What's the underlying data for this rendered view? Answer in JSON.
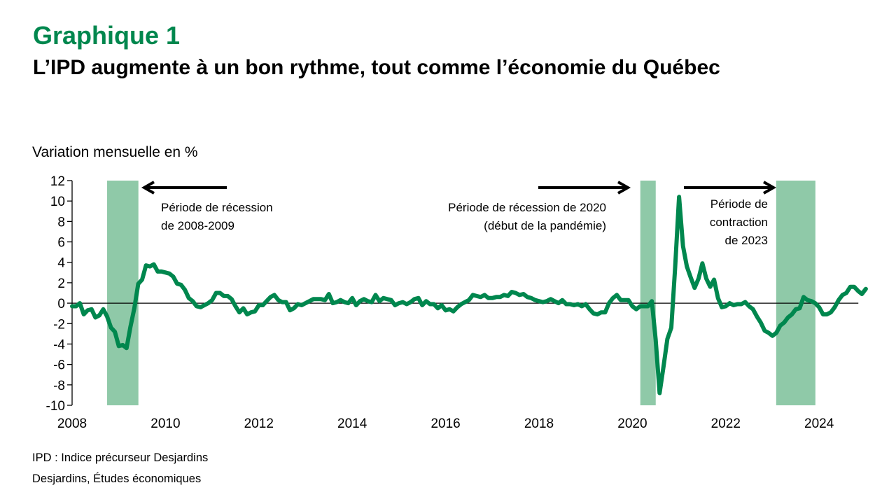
{
  "header": {
    "chart_number": "Graphique 1",
    "subtitle": "L’IPD augmente à un bon rythme, tout comme l’économie du Québec"
  },
  "footer": {
    "note": "IPD : Indice précurseur Desjardins",
    "source": "Desjardins, Études économiques"
  },
  "colors": {
    "line": "#00874E",
    "shading": "#8FC9A8",
    "title": "#00874E",
    "axis": "#000000"
  },
  "chart_data": {
    "type": "line",
    "title": "Graphique 1",
    "subtitle": "L’IPD augmente à un bon rythme, tout comme l’économie du Québec",
    "ylabel": "Variation mensuelle en %",
    "xlabel": "",
    "ylim": [
      -10,
      12
    ],
    "yticks": [
      -10,
      -8,
      -6,
      -4,
      -2,
      0,
      2,
      4,
      6,
      8,
      10,
      12
    ],
    "xlim": [
      2008,
      2024.75
    ],
    "xticks": [
      2008,
      2010,
      2012,
      2014,
      2016,
      2018,
      2020,
      2022,
      2024
    ],
    "grid": false,
    "legend": "none",
    "shaded_periods": [
      {
        "label": "Période de récession de 2008-2009",
        "start": 2008.75,
        "end": 2009.42
      },
      {
        "label": "Période de récession de 2020",
        "start": 2020.17,
        "end": 2020.5
      },
      {
        "label": "Période de contraction de 2023",
        "start": 2023.08,
        "end": 2023.92
      }
    ],
    "annotations": [
      {
        "lines": [
          "Période de récession",
          "de 2008-2009"
        ],
        "arrow": "left",
        "align": "left"
      },
      {
        "lines": [
          "Période de récession de 2020",
          "(début de la pandémie)"
        ],
        "arrow": "right",
        "align": "right"
      },
      {
        "lines": [
          "Période de",
          "contraction",
          "de 2023"
        ],
        "arrow": "right",
        "align": "right"
      }
    ],
    "series": [
      {
        "name": "IPD",
        "start": 2008.0,
        "step": 0.0833333,
        "values": [
          -0.3,
          -0.3,
          0.0,
          -1.1,
          -0.7,
          -0.6,
          -1.4,
          -1.2,
          -0.6,
          -1.3,
          -2.4,
          -2.8,
          -4.2,
          -4.1,
          -4.4,
          -2.3,
          -0.5,
          1.9,
          2.3,
          3.7,
          3.6,
          3.8,
          3.1,
          3.1,
          3.0,
          2.9,
          2.6,
          1.9,
          1.8,
          1.3,
          0.5,
          0.2,
          -0.3,
          -0.4,
          -0.2,
          0.0,
          0.3,
          1.0,
          1.0,
          0.7,
          0.7,
          0.4,
          -0.3,
          -0.9,
          -0.5,
          -1.1,
          -0.9,
          -0.8,
          -0.2,
          -0.2,
          0.2,
          0.6,
          0.8,
          0.3,
          0.1,
          0.1,
          -0.7,
          -0.5,
          -0.1,
          -0.2,
          0.0,
          0.2,
          0.4,
          0.4,
          0.4,
          0.3,
          0.9,
          0.0,
          0.1,
          0.3,
          0.1,
          0.0,
          0.5,
          -0.2,
          0.2,
          0.4,
          0.2,
          0.1,
          0.8,
          0.2,
          0.5,
          0.4,
          0.3,
          -0.2,
          0.0,
          0.1,
          -0.1,
          0.1,
          0.4,
          0.5,
          -0.2,
          0.2,
          -0.1,
          -0.1,
          -0.5,
          -0.2,
          -0.7,
          -0.6,
          -0.8,
          -0.4,
          -0.1,
          0.1,
          0.3,
          0.8,
          0.7,
          0.6,
          0.8,
          0.5,
          0.5,
          0.6,
          0.6,
          0.8,
          0.7,
          1.1,
          1.0,
          0.8,
          0.9,
          0.6,
          0.5,
          0.3,
          0.2,
          0.1,
          0.2,
          0.4,
          0.2,
          0.0,
          0.3,
          -0.1,
          -0.1,
          -0.2,
          -0.1,
          -0.3,
          -0.1,
          -0.6,
          -1.0,
          -1.1,
          -0.9,
          -0.9,
          0.0,
          0.5,
          0.8,
          0.3,
          0.3,
          0.3,
          -0.3,
          -0.6,
          -0.3,
          -0.3,
          -0.3,
          0.2,
          -3.6,
          -8.8,
          -6.2,
          -3.5,
          -2.4,
          3.5,
          10.4,
          5.6,
          3.6,
          2.5,
          1.5,
          2.4,
          3.9,
          2.4,
          1.6,
          2.3,
          0.5,
          -0.4,
          -0.3,
          0.0,
          -0.2,
          -0.1,
          -0.1,
          0.1,
          -0.3,
          -0.6,
          -1.3,
          -1.9,
          -2.7,
          -2.9,
          -3.2,
          -2.9,
          -2.2,
          -1.9,
          -1.4,
          -1.1,
          -0.6,
          -0.5,
          0.6,
          0.3,
          0.2,
          0.0,
          -0.4,
          -1.1,
          -1.1,
          -0.9,
          -0.4,
          0.3,
          0.8,
          1.0,
          1.6,
          1.6,
          1.2,
          0.9,
          1.4
        ]
      }
    ]
  }
}
